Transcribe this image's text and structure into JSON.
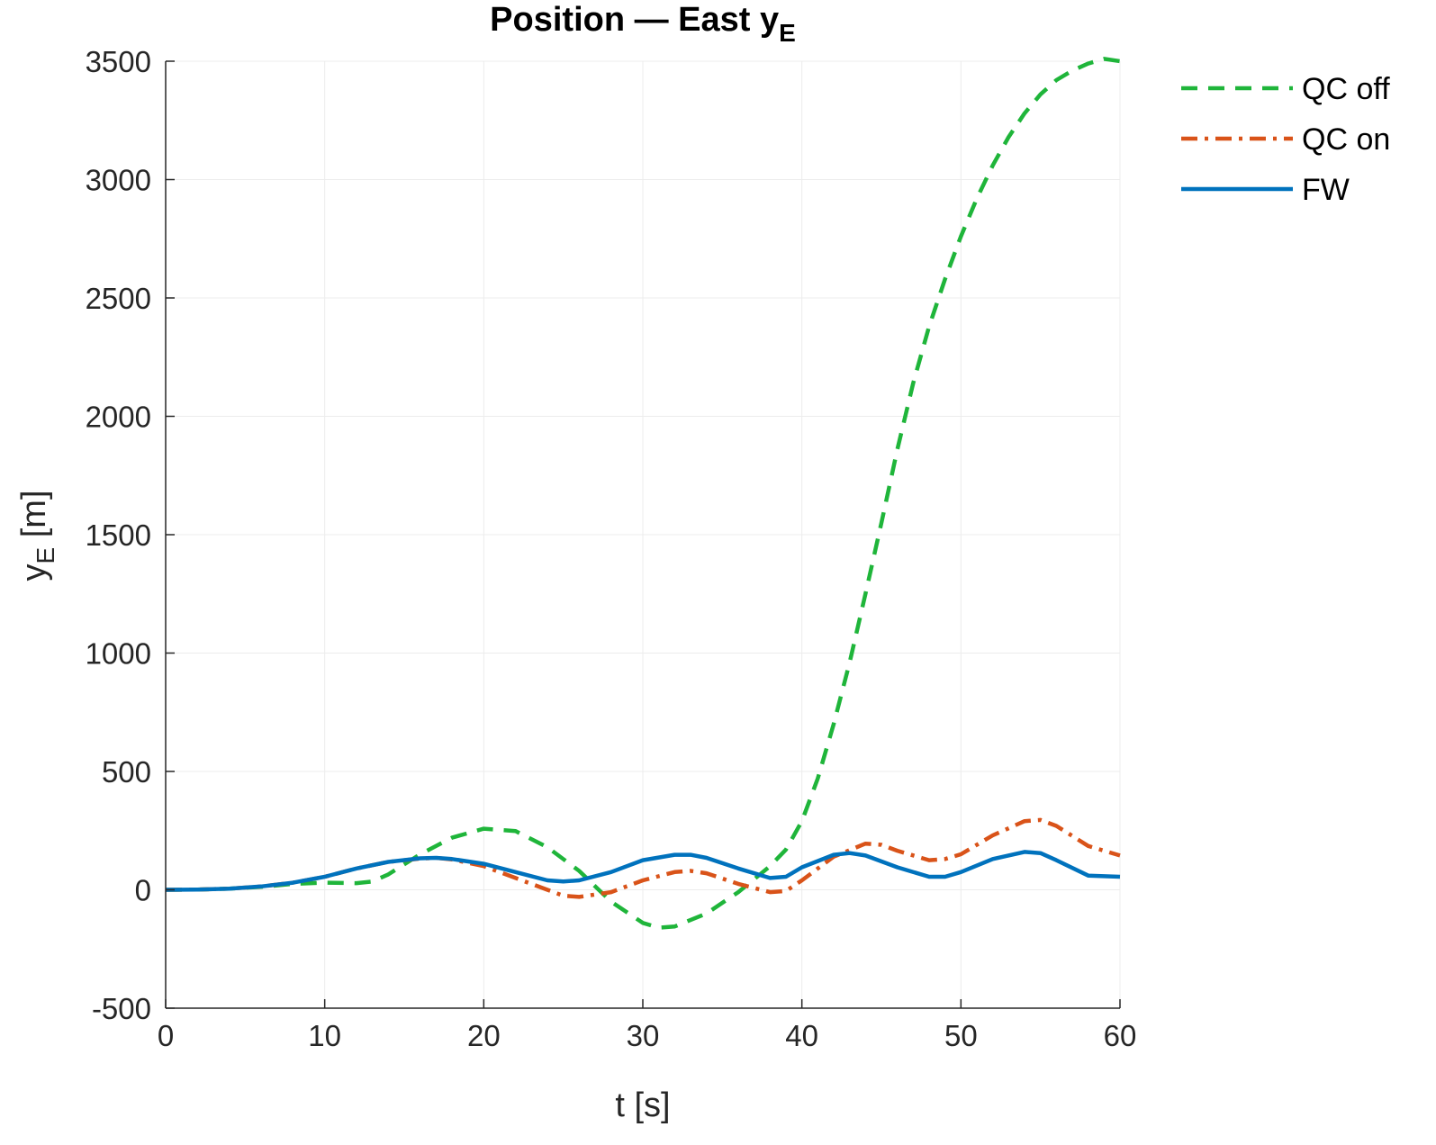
{
  "chart_data": {
    "type": "line",
    "title": "Position — East y",
    "title_subscript": "E",
    "xlabel": "t [s]",
    "ylabel": "y",
    "ylabel_subscript": "E",
    "ylabel_unit": " [m]",
    "xlim": [
      0,
      60
    ],
    "ylim": [
      -500,
      3500
    ],
    "xticks": [
      0,
      10,
      20,
      30,
      40,
      50,
      60
    ],
    "yticks": [
      -500,
      0,
      500,
      1000,
      1500,
      2000,
      2500,
      3000,
      3500
    ],
    "grid": true,
    "legend_position": "top-right outside",
    "series": [
      {
        "name": "QC off",
        "color": "#1fb53a",
        "style": "dashed",
        "x": [
          0,
          2,
          4,
          6,
          8,
          10,
          12,
          13,
          14,
          16,
          18,
          20,
          22,
          24,
          26,
          28,
          30,
          31,
          32,
          34,
          36,
          37,
          38,
          39,
          40,
          41,
          42,
          43,
          44,
          45,
          46,
          47,
          48,
          49,
          50,
          51,
          52,
          53,
          54,
          55,
          56,
          57,
          58,
          59,
          60
        ],
        "y": [
          0,
          1,
          5,
          12,
          25,
          30,
          28,
          35,
          65,
          150,
          220,
          258,
          248,
          180,
          80,
          -50,
          -140,
          -160,
          -155,
          -100,
          -10,
          45,
          100,
          170,
          290,
          470,
          700,
          960,
          1250,
          1550,
          1860,
          2140,
          2380,
          2580,
          2760,
          2920,
          3060,
          3180,
          3280,
          3360,
          3420,
          3460,
          3490,
          3510,
          3500
        ]
      },
      {
        "name": "QC on",
        "color": "#d95319",
        "style": "dashdot",
        "x": [
          0,
          2,
          4,
          6,
          8,
          10,
          12,
          14,
          16,
          17,
          18,
          20,
          22,
          24,
          25,
          26,
          28,
          30,
          32,
          33,
          34,
          36,
          38,
          39,
          40,
          42,
          44,
          45,
          46,
          48,
          49,
          50,
          52,
          54,
          55,
          56,
          58,
          60
        ],
        "y": [
          0,
          1,
          5,
          14,
          30,
          55,
          90,
          118,
          132,
          135,
          128,
          100,
          50,
          0,
          -25,
          -30,
          -10,
          40,
          75,
          80,
          70,
          25,
          -10,
          -5,
          40,
          140,
          195,
          190,
          165,
          125,
          130,
          150,
          230,
          290,
          295,
          270,
          185,
          145
        ]
      },
      {
        "name": "FW",
        "color": "#0072bd",
        "style": "solid",
        "x": [
          0,
          2,
          4,
          6,
          8,
          10,
          12,
          14,
          16,
          17,
          18,
          20,
          22,
          24,
          25,
          26,
          28,
          30,
          32,
          33,
          34,
          36,
          38,
          39,
          40,
          42,
          43,
          44,
          46,
          48,
          49,
          50,
          52,
          54,
          55,
          56,
          58,
          60
        ],
        "y": [
          0,
          1,
          5,
          14,
          30,
          55,
          90,
          118,
          133,
          135,
          130,
          110,
          75,
          40,
          35,
          40,
          75,
          125,
          148,
          148,
          135,
          90,
          50,
          55,
          95,
          148,
          155,
          145,
          95,
          55,
          55,
          75,
          130,
          160,
          155,
          125,
          60,
          55
        ]
      }
    ]
  }
}
